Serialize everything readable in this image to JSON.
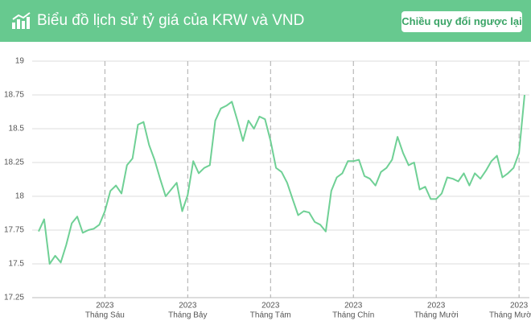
{
  "header": {
    "title": "Biểu đồ lịch sử tỷ giá của KRW và VND",
    "button": "Chiều quy đổi ngược lại"
  },
  "chart_data": {
    "type": "line",
    "color": "#6fd095",
    "categories": [
      null,
      null,
      null,
      null,
      null,
      null,
      null,
      null,
      null,
      null,
      null,
      null,
      [
        "2023",
        "Tháng Sáu"
      ],
      null,
      null,
      null,
      null,
      null,
      null,
      null,
      null,
      null,
      null,
      null,
      null,
      null,
      null,
      [
        "2023",
        "Tháng Bảy"
      ],
      null,
      null,
      null,
      null,
      null,
      null,
      null,
      null,
      null,
      null,
      null,
      null,
      null,
      null,
      [
        "2023",
        "Tháng Tám"
      ],
      null,
      null,
      null,
      null,
      null,
      null,
      null,
      null,
      null,
      null,
      null,
      null,
      null,
      null,
      [
        "2023",
        "Tháng Chín"
      ],
      null,
      null,
      null,
      null,
      null,
      null,
      null,
      null,
      null,
      null,
      null,
      null,
      null,
      null,
      [
        "2023",
        "Tháng Mười"
      ],
      null,
      null,
      null,
      null,
      null,
      null,
      null,
      null,
      null,
      null,
      null,
      null,
      null,
      null,
      [
        "2023",
        "Tháng Mười Một"
      ],
      null
    ],
    "values": [
      17.74,
      17.83,
      17.5,
      17.56,
      17.51,
      17.64,
      17.8,
      17.85,
      17.73,
      17.75,
      17.76,
      17.79,
      17.89,
      18.04,
      18.08,
      18.02,
      18.23,
      18.28,
      18.53,
      18.55,
      18.38,
      18.27,
      18.13,
      18.0,
      18.05,
      18.1,
      17.89,
      18.01,
      18.26,
      18.17,
      18.21,
      18.23,
      18.56,
      18.65,
      18.67,
      18.7,
      18.56,
      18.41,
      18.56,
      18.5,
      18.59,
      18.57,
      18.41,
      18.21,
      18.18,
      18.1,
      17.98,
      17.86,
      17.89,
      17.88,
      17.81,
      17.79,
      17.74,
      18.04,
      18.14,
      18.17,
      18.26,
      18.26,
      18.27,
      18.15,
      18.13,
      18.08,
      18.18,
      18.21,
      18.27,
      18.44,
      18.32,
      18.23,
      18.25,
      18.05,
      18.07,
      17.98,
      17.98,
      18.02,
      18.14,
      18.13,
      18.11,
      18.17,
      18.08,
      18.17,
      18.13,
      18.19,
      18.26,
      18.3,
      18.14,
      18.17,
      18.21,
      18.32,
      18.75
    ],
    "ylim": [
      17.25,
      19
    ],
    "yticks": [
      17.25,
      17.5,
      17.75,
      18,
      18.25,
      18.5,
      18.75,
      19
    ],
    "grid": true
  }
}
